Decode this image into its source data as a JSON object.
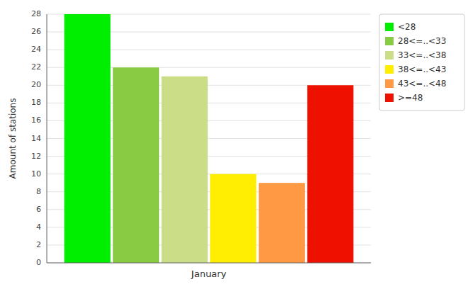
{
  "chart_data": {
    "type": "bar",
    "categories": [
      "January"
    ],
    "series": [
      {
        "name": "<28",
        "color": "#00ee00",
        "values": [
          28
        ]
      },
      {
        "name": "28<=..<33",
        "color": "#88cc44",
        "values": [
          22
        ]
      },
      {
        "name": "33<=..<38",
        "color": "#ccdd88",
        "values": [
          21
        ]
      },
      {
        "name": "38<=..<43",
        "color": "#ffee00",
        "values": [
          10
        ]
      },
      {
        "name": "43<=..<48",
        "color": "#ff9944",
        "values": [
          9
        ]
      },
      {
        "name": ">=48",
        "color": "#ee1100",
        "values": [
          20
        ]
      }
    ],
    "ylabel": "Amount of stations",
    "ylim": [
      0,
      28
    ],
    "yticks": [
      0,
      2,
      4,
      6,
      8,
      10,
      12,
      14,
      16,
      18,
      20,
      22,
      24,
      26,
      28
    ],
    "grid": true,
    "legend": "upper right"
  }
}
